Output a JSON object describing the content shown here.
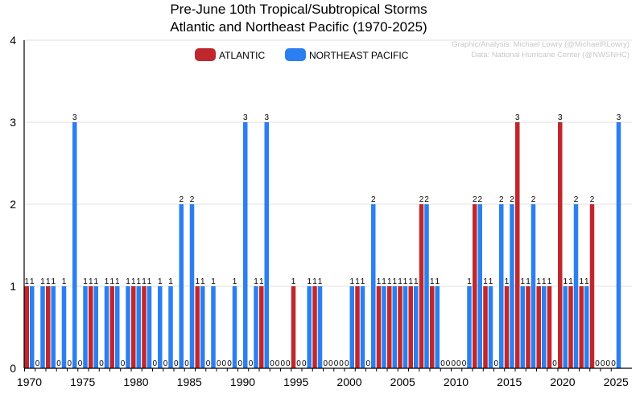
{
  "chart_data": {
    "type": "bar",
    "title": [
      "Pre-June 10th Tropical/Subtropical Storms",
      "Atlantic and Northeast Pacific (1970-2025)"
    ],
    "credits": [
      "Graphic/Analysis: Michael Lowry (@MichaelRLowry)",
      "Data: National Hurricane Center (@NWSNHC)"
    ],
    "xlabel": "",
    "ylabel": "",
    "ylim": [
      0,
      4
    ],
    "yticks": [
      0,
      1,
      2,
      3,
      4
    ],
    "xticks": [
      1970,
      1975,
      1980,
      1985,
      1990,
      1995,
      2000,
      2005,
      2010,
      2015,
      2020,
      2025
    ],
    "grid": "horizontal",
    "legend": "top-center",
    "categories": [
      1970,
      1971,
      1972,
      1973,
      1974,
      1975,
      1976,
      1977,
      1978,
      1979,
      1980,
      1981,
      1982,
      1983,
      1984,
      1985,
      1986,
      1987,
      1988,
      1989,
      1990,
      1991,
      1992,
      1993,
      1994,
      1995,
      1996,
      1997,
      1998,
      1999,
      2000,
      2001,
      2002,
      2003,
      2004,
      2005,
      2006,
      2007,
      2008,
      2009,
      2010,
      2011,
      2012,
      2013,
      2014,
      2015,
      2016,
      2017,
      2018,
      2019,
      2020,
      2021,
      2022,
      2023,
      2024,
      2025
    ],
    "series": [
      {
        "name": "ATLANTIC",
        "color": "#c0272d",
        "values": [
          1,
          0,
          1,
          0,
          0,
          0,
          1,
          0,
          1,
          0,
          1,
          1,
          0,
          0,
          0,
          0,
          1,
          0,
          0,
          0,
          0,
          0,
          1,
          0,
          0,
          1,
          0,
          1,
          0,
          0,
          0,
          1,
          0,
          1,
          1,
          1,
          1,
          2,
          1,
          0,
          0,
          0,
          2,
          1,
          0,
          1,
          3,
          1,
          1,
          1,
          3,
          1,
          1,
          2,
          0,
          0
        ]
      },
      {
        "name": "NORTHEAST PACIFIC",
        "color": "#2b7ff0",
        "values": [
          1,
          1,
          1,
          1,
          3,
          1,
          1,
          1,
          1,
          1,
          1,
          1,
          1,
          1,
          2,
          2,
          1,
          1,
          0,
          1,
          3,
          1,
          3,
          0,
          0,
          0,
          1,
          1,
          0,
          0,
          1,
          1,
          2,
          1,
          1,
          1,
          1,
          2,
          1,
          0,
          0,
          1,
          2,
          1,
          2,
          2,
          1,
          2,
          1,
          0,
          1,
          2,
          1,
          0,
          0,
          3
        ]
      }
    ]
  }
}
